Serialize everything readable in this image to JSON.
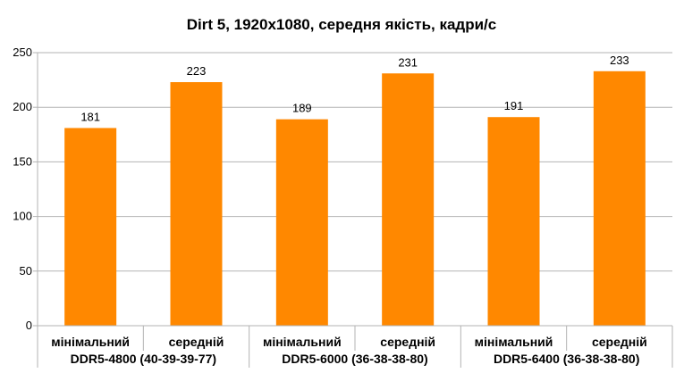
{
  "chart_data": {
    "type": "bar",
    "title": "Dirt 5, 1920x1080, середня якість, кадри/с",
    "xlabel": "",
    "ylabel": "",
    "ylim": [
      0,
      250
    ],
    "yticks": [
      0,
      50,
      100,
      150,
      200,
      250
    ],
    "grid": true,
    "legend": "none",
    "bar_color": "#ff8800",
    "groups": [
      "DDR5-4800 (40-39-39-77)",
      "DDR5-6000 (36-38-38-80)",
      "DDR5-6400 (36-38-38-80)"
    ],
    "categories": [
      "мінімальний",
      "середній",
      "мінімальний",
      "середній",
      "мінімальний",
      "середній"
    ],
    "values": [
      181,
      223,
      189,
      231,
      191,
      233
    ]
  }
}
